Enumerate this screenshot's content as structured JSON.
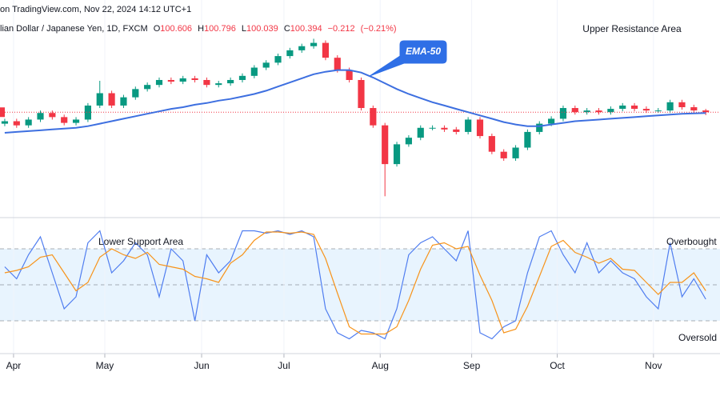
{
  "chart_data": [
    {
      "type": "candlestick",
      "title": "on TradingView.com, Nov 22, 2024 14:12 UTC+1",
      "subtitle": "lian Dollar / Japanese Yen, 1D, FXCM",
      "ohlc_labels": [
        "O",
        "H",
        "L",
        "C"
      ],
      "change": {
        "value": -0.212,
        "label": "−0.212"
      },
      "change_percent": {
        "value": -0.21,
        "label": "(−0.21%)"
      },
      "open": [
        99.0,
        99.3,
        98.8,
        99.5,
        100.3,
        99.8,
        99.1,
        99.5,
        101.2,
        102.7,
        101.2,
        102.2,
        103.2,
        103.7,
        104.3,
        104.1,
        104.5,
        104.3,
        103.7,
        103.9,
        104.3,
        104.8,
        105.8,
        106.4,
        107.2,
        107.9,
        108.4,
        108.8,
        107.0,
        105.5,
        104.3,
        100.9,
        98.8,
        94.1,
        96.5,
        97.3,
        98.5,
        98.5,
        98.3,
        98.0,
        99.5,
        97.5,
        95.6,
        94.8,
        96.1,
        98.0,
        99.0,
        99.6,
        100.9,
        100.4,
        100.6,
        100.4,
        100.8,
        101.2,
        100.8,
        100.6,
        100.6,
        101.6,
        101.0,
        100.606
      ],
      "high": [
        99.6,
        99.6,
        99.8,
        100.6,
        100.6,
        100.1,
        99.8,
        101.5,
        104.2,
        103.0,
        102.5,
        103.5,
        104.0,
        104.6,
        104.6,
        104.8,
        104.8,
        104.6,
        104.2,
        104.6,
        105.1,
        106.1,
        106.7,
        107.5,
        108.2,
        108.7,
        109.3,
        109.1,
        107.3,
        105.8,
        104.6,
        101.2,
        99.1,
        96.8,
        97.6,
        98.8,
        98.8,
        98.8,
        98.6,
        99.8,
        99.8,
        97.8,
        95.9,
        96.4,
        98.3,
        99.3,
        99.9,
        101.2,
        101.2,
        100.9,
        100.9,
        101.1,
        101.5,
        101.5,
        101.1,
        100.9,
        101.9,
        101.9,
        101.3,
        100.796
      ],
      "low": [
        98.7,
        98.5,
        98.5,
        99.2,
        99.5,
        98.8,
        98.8,
        99.2,
        100.9,
        100.9,
        100.9,
        101.9,
        102.9,
        103.4,
        103.8,
        103.8,
        104.0,
        103.4,
        103.4,
        103.6,
        104.0,
        104.5,
        105.5,
        106.1,
        106.9,
        107.6,
        108.1,
        106.7,
        105.2,
        104.0,
        100.6,
        98.5,
        90.2,
        93.8,
        96.2,
        97.0,
        98.2,
        98.0,
        97.7,
        97.7,
        97.2,
        95.3,
        94.5,
        94.5,
        95.8,
        97.7,
        98.7,
        99.3,
        100.1,
        100.1,
        100.1,
        100.1,
        100.5,
        100.5,
        100.3,
        100.3,
        100.3,
        100.7,
        100.3,
        100.039
      ],
      "close": [
        99.3,
        98.8,
        99.5,
        100.3,
        99.8,
        99.1,
        99.5,
        101.2,
        102.7,
        101.2,
        102.2,
        103.2,
        103.7,
        104.3,
        104.1,
        104.5,
        104.3,
        103.7,
        103.9,
        104.3,
        104.8,
        105.8,
        106.4,
        107.2,
        107.9,
        108.4,
        108.8,
        107.0,
        105.5,
        104.3,
        100.9,
        98.8,
        94.1,
        96.5,
        97.3,
        98.5,
        98.5,
        98.3,
        98.0,
        99.5,
        97.5,
        95.6,
        94.8,
        96.1,
        98.0,
        99.0,
        99.6,
        100.9,
        100.4,
        100.6,
        100.4,
        100.8,
        101.2,
        100.8,
        100.6,
        100.6,
        101.6,
        101.0,
        100.606,
        100.394
      ],
      "up_color": "#089981",
      "down_color": "#f23645",
      "series": [
        {
          "name": "EMA-50",
          "color": "#3d6fe0",
          "values": [
            97.9,
            98.0,
            98.1,
            98.2,
            98.3,
            98.4,
            98.5,
            98.7,
            99.0,
            99.3,
            99.6,
            99.9,
            100.2,
            100.5,
            100.8,
            101.0,
            101.3,
            101.5,
            101.8,
            102.0,
            102.3,
            102.6,
            103.0,
            103.5,
            104.0,
            104.5,
            105.0,
            105.3,
            105.5,
            105.5,
            105.2,
            104.6,
            103.9,
            103.2,
            102.6,
            102.1,
            101.6,
            101.2,
            100.8,
            100.4,
            100.0,
            99.6,
            99.2,
            98.9,
            98.7,
            98.7,
            98.9,
            99.1,
            99.3,
            99.4,
            99.5,
            99.6,
            99.7,
            99.8,
            99.9,
            100.0,
            100.1,
            100.2,
            100.25,
            100.3
          ]
        }
      ],
      "annotations": [
        "Upper Resistance Area"
      ],
      "last_price_line": true,
      "xlim": [
        -0.4,
        60.2
      ],
      "ylim": [
        88,
        114
      ]
    },
    {
      "type": "line",
      "series": [
        {
          "color": "#4f7df0",
          "values": [
            65,
            55,
            75,
            90,
            60,
            30,
            40,
            85,
            95,
            60,
            70,
            85,
            75,
            40,
            80,
            70,
            20,
            75,
            60,
            70,
            95,
            95,
            93,
            95,
            92,
            95,
            90,
            30,
            10,
            5,
            12,
            10,
            5,
            30,
            75,
            85,
            90,
            80,
            70,
            95,
            10,
            5,
            15,
            20,
            60,
            90,
            95,
            75,
            60,
            85,
            60,
            70,
            60,
            55,
            40,
            30,
            85,
            40,
            55,
            38
          ]
        },
        {
          "color": "#f7931a",
          "values": [
            60,
            62,
            65,
            73,
            75,
            60,
            45,
            52,
            73,
            80,
            75,
            72,
            77,
            67,
            65,
            63,
            57,
            55,
            52,
            68,
            75,
            87,
            94,
            94,
            93,
            94,
            92,
            72,
            43,
            15,
            9,
            9,
            9,
            15,
            37,
            63,
            83,
            85,
            80,
            82,
            58,
            37,
            10,
            13,
            32,
            57,
            82,
            87,
            77,
            73,
            68,
            72,
            63,
            62,
            52,
            42,
            52,
            52,
            60,
            45
          ]
        }
      ],
      "levels": [
        80,
        50,
        20
      ],
      "annotations": [
        "Lower Support Area",
        "Overbought",
        "Oversold"
      ],
      "xlim": [
        -0.4,
        60.2
      ],
      "ylim": [
        0,
        100
      ],
      "xticks": [
        {
          "value": 0.74,
          "label": "Apr"
        },
        {
          "value": 8.42,
          "label": "May"
        },
        {
          "value": 16.57,
          "label": "Jun"
        },
        {
          "value": 23.5,
          "label": "Jul"
        },
        {
          "value": 31.6,
          "label": "Aug"
        },
        {
          "value": 39.3,
          "label": "Sep"
        },
        {
          "value": 46.5,
          "label": "Oct"
        },
        {
          "value": 54.6,
          "label": "Nov"
        }
      ]
    }
  ]
}
